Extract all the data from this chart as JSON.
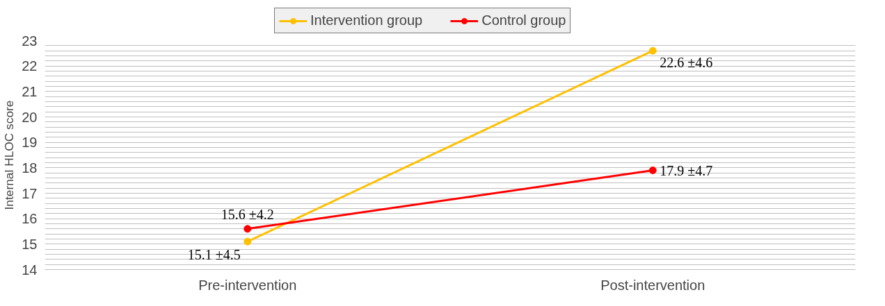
{
  "chart_data": {
    "type": "line",
    "ylabel": "Internal HLOC score",
    "categories": [
      "Pre-intervention",
      "Post-intervention"
    ],
    "series": [
      {
        "name": "Intervention group",
        "color": "#ffc000",
        "values": [
          15.1,
          22.6
        ],
        "value_labels": [
          "15.1 ±4.5",
          "22.6 ±4.6"
        ]
      },
      {
        "name": "Control group",
        "color": "#ff0000",
        "values": [
          15.6,
          17.9
        ],
        "value_labels": [
          "15.6 ±4.2",
          "17.9 ±4.7"
        ]
      }
    ],
    "ylim": [
      14,
      23
    ],
    "yticks": [
      14,
      {
        "value": 14.2,
        "label": null
      },
      {
        "value": 14.4,
        "label": null
      },
      {
        "value": 14.6,
        "label": null
      },
      {
        "value": 14.8,
        "label": null
      },
      15,
      {
        "value": 15.2,
        "label": null
      },
      {
        "value": 15.4,
        "label": null
      },
      {
        "value": 15.6,
        "label": null
      },
      {
        "value": 15.8,
        "label": null
      },
      16,
      {
        "value": 16.2,
        "label": null
      },
      {
        "value": 16.4,
        "label": null
      },
      {
        "value": 16.6,
        "label": null
      },
      {
        "value": 16.8,
        "label": null
      },
      17,
      {
        "value": 17.2,
        "label": null
      },
      {
        "value": 17.4,
        "label": null
      },
      {
        "value": 17.6,
        "label": null
      },
      {
        "value": 17.8,
        "label": null
      },
      18,
      {
        "value": 18.2,
        "label": null
      },
      {
        "value": 18.4,
        "label": null
      },
      {
        "value": 18.6,
        "label": null
      },
      {
        "value": 18.8,
        "label": null
      },
      19,
      {
        "value": 19.2,
        "label": null
      },
      {
        "value": 19.4,
        "label": null
      },
      {
        "value": 19.6,
        "label": null
      },
      {
        "value": 19.8,
        "label": null
      },
      20,
      {
        "value": 20.2,
        "label": null
      },
      {
        "value": 20.4,
        "label": null
      },
      {
        "value": 20.6,
        "label": null
      },
      {
        "value": 20.8,
        "label": null
      },
      21,
      {
        "value": 21.2,
        "label": null
      },
      {
        "value": 21.4,
        "label": null
      },
      {
        "value": 21.6,
        "label": null
      },
      {
        "value": 21.8,
        "label": null
      },
      22,
      {
        "value": 22.2,
        "label": null
      },
      {
        "value": 22.4,
        "label": null
      },
      {
        "value": 22.6,
        "label": null
      },
      {
        "value": 22.8,
        "label": null
      },
      23
    ],
    "grid": "y",
    "legend": "top",
    "marker": "circle",
    "line_style": "solid"
  }
}
